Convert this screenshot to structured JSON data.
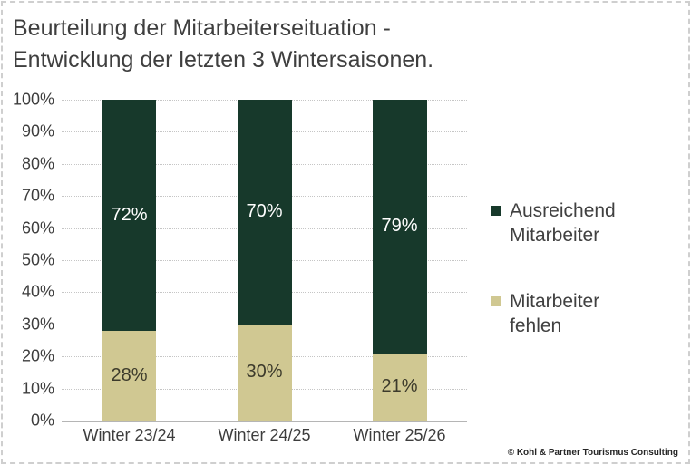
{
  "title_lines": [
    "Beurteilung der Mitarbeiterseituation -",
    "Entwicklung der letzten 3 Wintersaisonen."
  ],
  "footer": {
    "copyright": "© Kohl & Partner Tourismus Consulting"
  },
  "colors": {
    "green": "#17392b",
    "beige": "#d0c892",
    "text": "#3f3f3f",
    "gridline": "#c6c6c6"
  },
  "chart_data": {
    "type": "bar",
    "stacked": true,
    "title": "Beurteilung der Mitarbeiterseituation - Entwicklung der letzten 3 Wintersaisonen.",
    "categories": [
      "Winter 23/24",
      "Winter 24/25",
      "Winter 25/26"
    ],
    "series": [
      {
        "name": "Ausreichend Mitarbeiter",
        "values": [
          72,
          70,
          79
        ],
        "color": "#17392b",
        "label_color": "#ffffff"
      },
      {
        "name": "Mitarbeiter fehlen",
        "values": [
          28,
          30,
          21
        ],
        "color": "#d0c892",
        "label_color": "#3c3a2b"
      }
    ],
    "y_ticks": [
      "100%",
      "90%",
      "80%",
      "70%",
      "60%",
      "50%",
      "40%",
      "30%",
      "20%",
      "10%",
      "0%"
    ],
    "ylim": [
      0,
      100
    ],
    "value_suffix": "%",
    "grid": true,
    "legend_position": "right"
  }
}
